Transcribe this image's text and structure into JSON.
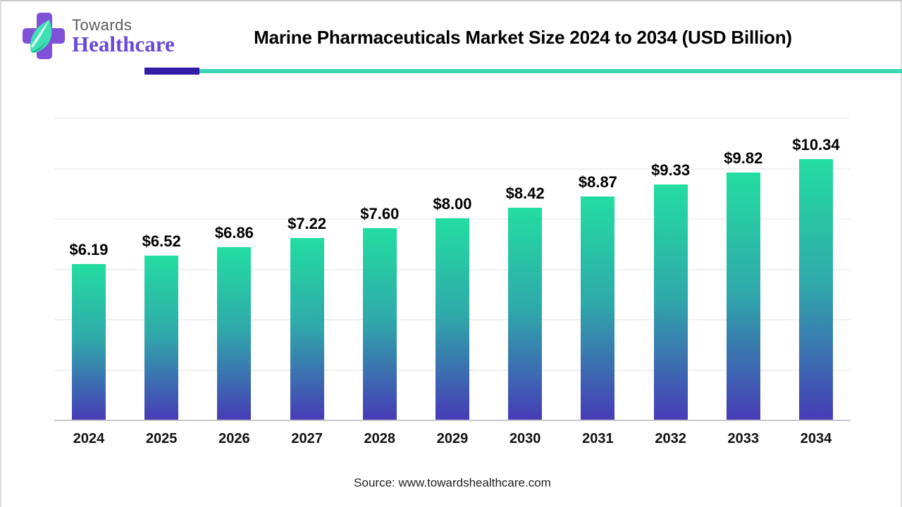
{
  "brand": {
    "name_top": "Towards",
    "name_bottom": "Healthcare",
    "logo_icon": "cross-leaf-icon",
    "cross_color": "#7f51d9",
    "leaf_color_light": "#3fe0b4",
    "leaf_color_dark": "#14b890"
  },
  "header": {
    "title": "Marine Pharmaceuticals Market Size 2024 to 2034 (USD Billion)",
    "underline_purple_color": "#341ca8",
    "underline_teal_color": "#3dd6b4"
  },
  "chart_data": {
    "type": "bar",
    "title": "Marine Pharmaceuticals Market Size 2024 to 2034 (USD Billion)",
    "categories": [
      "2024",
      "2025",
      "2026",
      "2027",
      "2028",
      "2029",
      "2030",
      "2031",
      "2032",
      "2033",
      "2034"
    ],
    "values": [
      6.19,
      6.52,
      6.86,
      7.22,
      7.6,
      8.0,
      8.42,
      8.87,
      9.33,
      9.82,
      10.34
    ],
    "value_labels": [
      "$6.19",
      "$6.52",
      "$6.86",
      "$7.22",
      "$7.60",
      "$8.00",
      "$8.42",
      "$8.87",
      "$9.33",
      "$9.82",
      "$10.34"
    ],
    "xlabel": "",
    "ylabel": "",
    "unit": "USD Billion",
    "ylim": [
      0,
      12
    ],
    "grid": {
      "visible": true,
      "interval": 2,
      "color": "#f1f1f1",
      "axis_color": "#c9c9c9",
      "y_tick_labels_visible": false
    },
    "legend": "none",
    "bar_gradient": {
      "top": "#23dda1",
      "mid": "#2fa9aa",
      "bottom": "#473cb6"
    }
  },
  "footer": {
    "source": "Source: www.towardshealthcare.com"
  }
}
